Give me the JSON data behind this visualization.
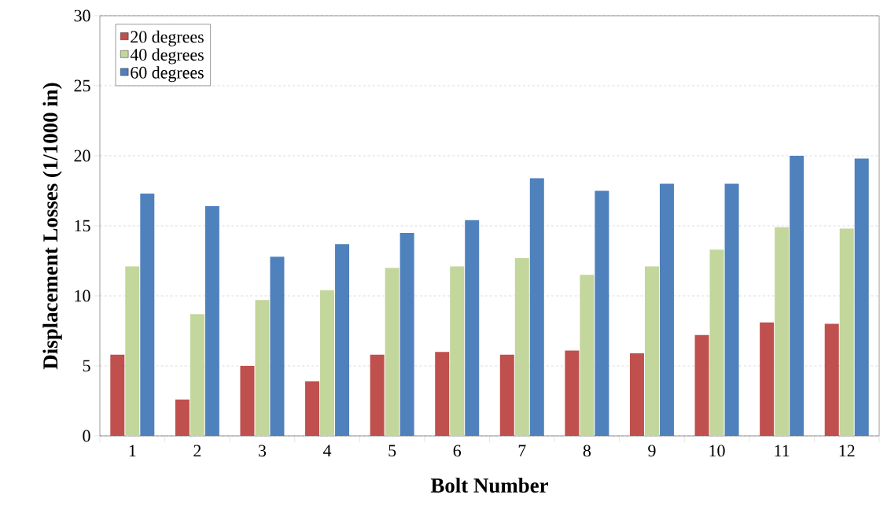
{
  "chart_data": {
    "type": "bar",
    "xlabel": "Bolt Number",
    "ylabel": "Displacement Losses (1/1000 in)",
    "categories": [
      "1",
      "2",
      "3",
      "4",
      "5",
      "6",
      "7",
      "8",
      "9",
      "10",
      "11",
      "12"
    ],
    "series": [
      {
        "name": "20 degrees",
        "color": "#c0504d",
        "values": [
          5.8,
          2.6,
          5.0,
          3.9,
          5.8,
          6.0,
          5.8,
          6.1,
          5.9,
          7.2,
          8.1,
          8.0
        ]
      },
      {
        "name": "40 degrees",
        "color": "#c3d69b",
        "values": [
          12.1,
          8.7,
          9.7,
          10.4,
          12.0,
          12.1,
          12.7,
          11.5,
          12.1,
          13.3,
          14.9,
          14.8
        ]
      },
      {
        "name": "60 degrees",
        "color": "#4f81bd",
        "values": [
          17.3,
          16.4,
          12.8,
          13.7,
          14.5,
          15.4,
          18.4,
          17.5,
          18.0,
          18.0,
          20.0,
          19.8
        ]
      }
    ],
    "ylim": [
      0,
      30
    ],
    "yticks": [
      0,
      5,
      10,
      15,
      20,
      25,
      30
    ],
    "grid": "y",
    "legend": "top left"
  }
}
